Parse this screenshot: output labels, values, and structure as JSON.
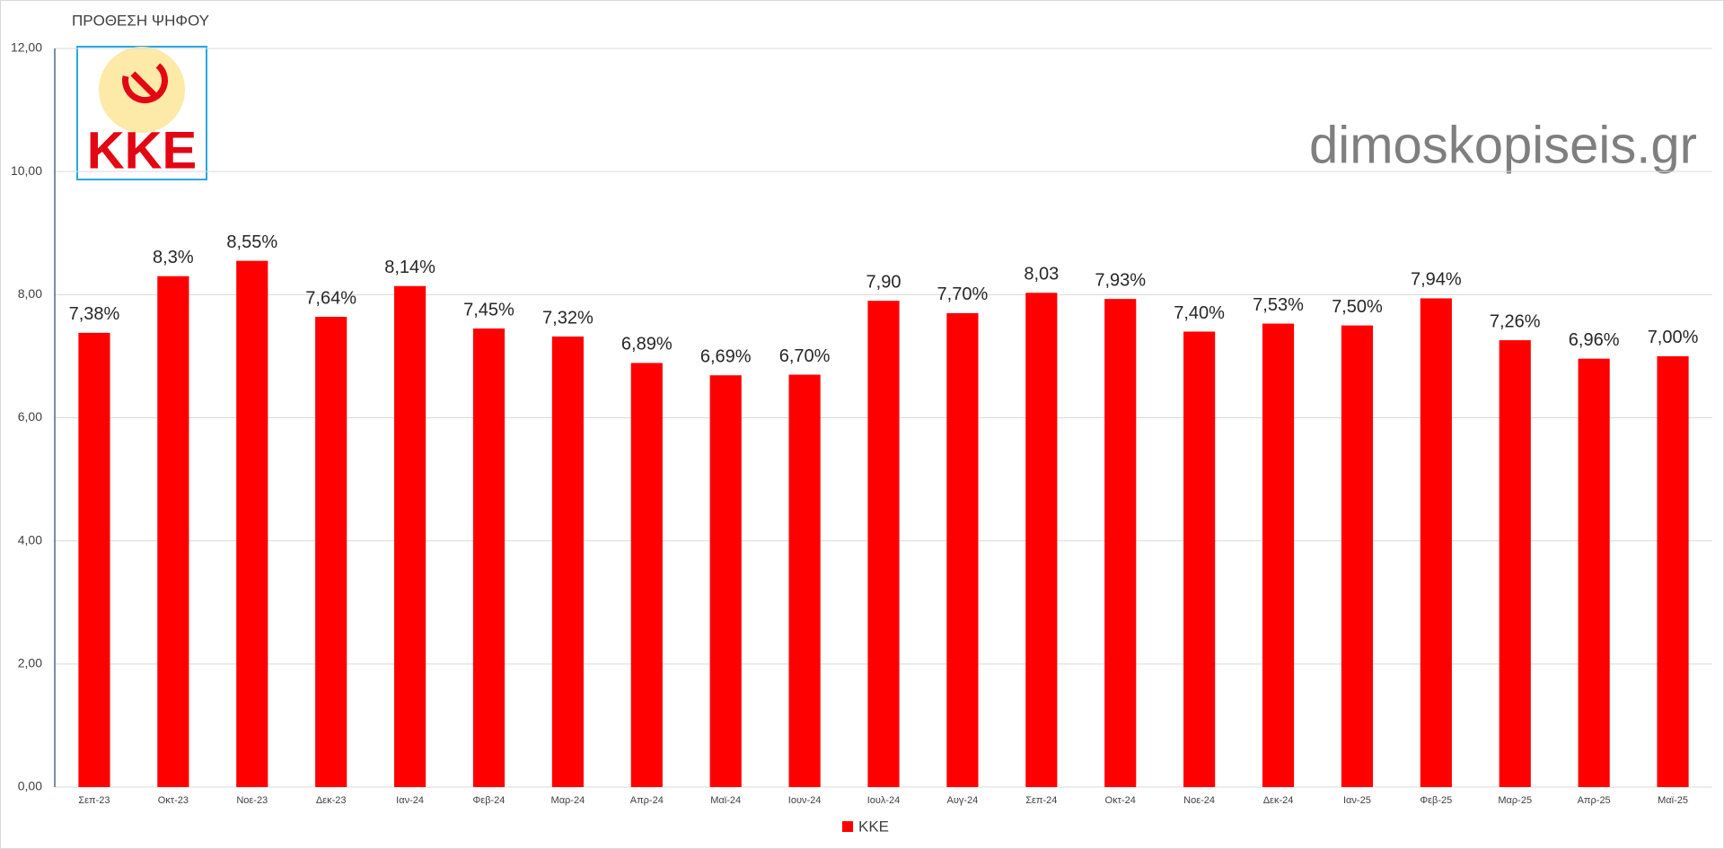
{
  "chart_data": {
    "type": "bar",
    "title": "ΠΡΟΘΕΣΗ ΨΗΦΟΥ",
    "watermark": "dimoskopiseis.gr",
    "logo_text": "ΚΚΕ",
    "categories": [
      "Σεπ-23",
      "Οκτ-23",
      "Νοε-23",
      "Δεκ-23",
      "Ιαν-24",
      "Φεβ-24",
      "Μαρ-24",
      "Απρ-24",
      "Μαϊ-24",
      "Ιουν-24",
      "Ιουλ-24",
      "Αυγ-24",
      "Σεπ-24",
      "Οκτ-24",
      "Νοε-24",
      "Δεκ-24",
      "Ιαν-25",
      "Φεβ-25",
      "Μαρ-25",
      "Απρ-25",
      "Μαϊ-25"
    ],
    "series": [
      {
        "name": "KKE",
        "color": "#ff0000",
        "values": [
          7.38,
          8.3,
          8.55,
          7.64,
          8.14,
          7.45,
          7.32,
          6.89,
          6.69,
          6.7,
          7.9,
          7.7,
          8.03,
          7.93,
          7.4,
          7.53,
          7.5,
          7.94,
          7.26,
          6.96,
          7.0
        ],
        "value_labels": [
          "7,38%",
          "8,3%",
          "8,55%",
          "7,64%",
          "8,14%",
          "7,45%",
          "7,32%",
          "6,89%",
          "6,69%",
          "6,70%",
          "7,90",
          "7,70%",
          "8,03",
          "7,93%",
          "7,40%",
          "7,53%",
          "7,50%",
          "7,94%",
          "7,26%",
          "6,96%",
          "7,00%"
        ]
      }
    ],
    "ylim": [
      0,
      12
    ],
    "yticks": [
      {
        "value": 0,
        "label": "0,00"
      },
      {
        "value": 2,
        "label": "2,00"
      },
      {
        "value": 4,
        "label": "4,00"
      },
      {
        "value": 6,
        "label": "6,00"
      },
      {
        "value": 8,
        "label": "8,00"
      },
      {
        "value": 10,
        "label": "10,00"
      },
      {
        "value": 12,
        "label": "12,00"
      }
    ],
    "grid": true,
    "legend": "bottom"
  }
}
